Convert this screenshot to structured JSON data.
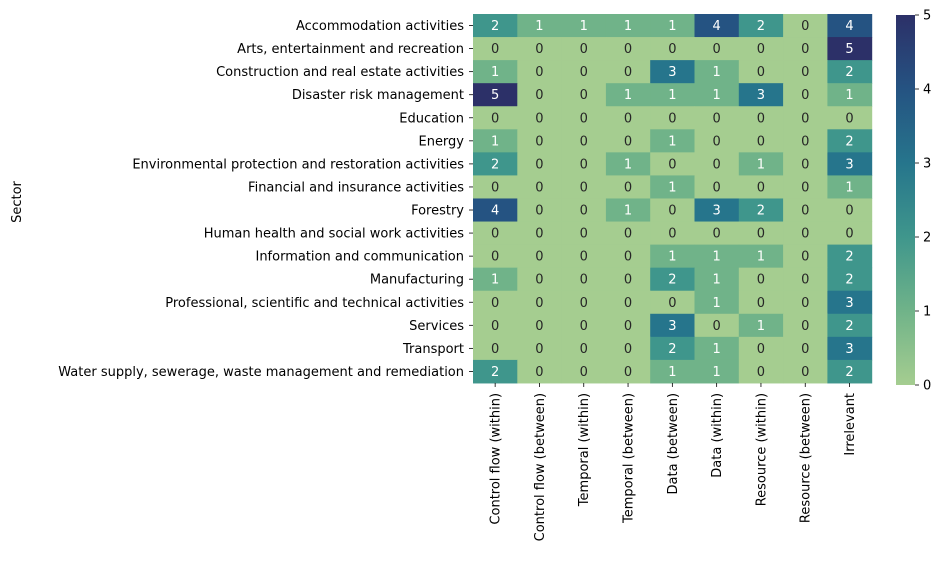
{
  "chart_data": {
    "type": "heatmap",
    "ylabel": "Sector",
    "rows": [
      "Accommodation activities",
      "Arts, entertainment and recreation",
      "Construction and real estate activities",
      "Disaster risk management",
      "Education",
      "Energy",
      "Environmental protection and restoration activities",
      "Financial and insurance activities",
      "Forestry",
      "Human health and social work activities",
      "Information and communication",
      "Manufacturing",
      "Professional, scientific and technical activities",
      "Services",
      "Transport",
      "Water supply, sewerage, waste management and remediation"
    ],
    "columns": [
      "Control flow (within)",
      "Control flow (between)",
      "Temporal (within)",
      "Temporal (between)",
      "Data (between)",
      "Data (within)",
      "Resource (within)",
      "Resource (between)",
      "Irrelevant"
    ],
    "values": [
      [
        2,
        1,
        1,
        1,
        1,
        4,
        2,
        0,
        4
      ],
      [
        0,
        0,
        0,
        0,
        0,
        0,
        0,
        0,
        5
      ],
      [
        1,
        0,
        0,
        0,
        3,
        1,
        0,
        0,
        2
      ],
      [
        5,
        0,
        0,
        1,
        1,
        1,
        3,
        0,
        1
      ],
      [
        0,
        0,
        0,
        0,
        0,
        0,
        0,
        0,
        0
      ],
      [
        1,
        0,
        0,
        0,
        1,
        0,
        0,
        0,
        2
      ],
      [
        2,
        0,
        0,
        1,
        0,
        0,
        1,
        0,
        3
      ],
      [
        0,
        0,
        0,
        0,
        1,
        0,
        0,
        0,
        1
      ],
      [
        4,
        0,
        0,
        1,
        0,
        3,
        2,
        0,
        0
      ],
      [
        0,
        0,
        0,
        0,
        0,
        0,
        0,
        0,
        0
      ],
      [
        0,
        0,
        0,
        0,
        1,
        1,
        1,
        0,
        2
      ],
      [
        1,
        0,
        0,
        0,
        2,
        1,
        0,
        0,
        2
      ],
      [
        0,
        0,
        0,
        0,
        0,
        1,
        0,
        0,
        3
      ],
      [
        0,
        0,
        0,
        0,
        3,
        0,
        1,
        0,
        2
      ],
      [
        0,
        0,
        0,
        0,
        2,
        1,
        0,
        0,
        3
      ],
      [
        2,
        0,
        0,
        0,
        1,
        1,
        0,
        0,
        2
      ]
    ],
    "colorbar": {
      "min": 0,
      "max": 5,
      "ticks": [
        "0",
        "1",
        "2",
        "3",
        "4",
        "5"
      ],
      "colormap": "crest"
    }
  }
}
